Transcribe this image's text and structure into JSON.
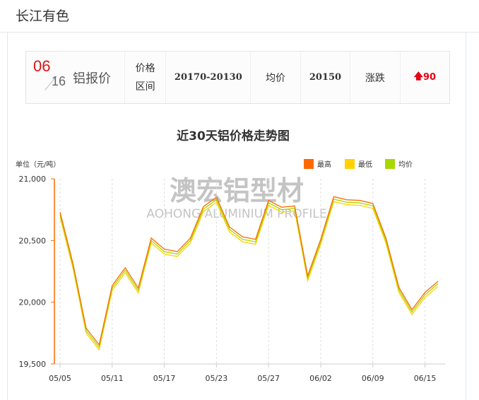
{
  "header": {
    "title": "长江有色"
  },
  "price_bar": {
    "month": "06",
    "day": "16",
    "title": "铝报价",
    "range_label_1": "价格",
    "range_label_2": "区间",
    "range_value": "20170-20130",
    "avg_label": "均价",
    "avg_value": "20150",
    "change_label": "涨跌",
    "change_icon": "arrow-up-icon",
    "change_value": "90",
    "change_color": "#e60012"
  },
  "watermark": {
    "cn": "澳宏铝型材",
    "en": "AOHONG ALUMINIUM PROFILE"
  },
  "chart_data": {
    "type": "line",
    "title": "近30天铝价格走势图",
    "ylabel": "单位（元/吨）",
    "ylim": [
      19500,
      21000
    ],
    "yticks": [
      "19,500",
      "20,000",
      "20,500",
      "21,000"
    ],
    "ytick_values": [
      19500,
      20000,
      20500,
      21000
    ],
    "xtick_labels": [
      "05/05",
      "05/11",
      "05/17",
      "05/23",
      "05/27",
      "06/02",
      "06/09",
      "06/15"
    ],
    "xtick_indices": [
      0,
      4,
      8,
      12,
      16,
      20,
      24,
      28
    ],
    "grid": "vertical dashed",
    "legend": "top-right",
    "series": [
      {
        "name": "最高",
        "color": "#ff6a00",
        "values": [
          20730,
          20310,
          19790,
          19655,
          20135,
          20280,
          20115,
          20520,
          20430,
          20410,
          20520,
          20775,
          20850,
          20610,
          20530,
          20510,
          20825,
          20770,
          20780,
          20215,
          20510,
          20855,
          20830,
          20825,
          20800,
          20520,
          20120,
          19940,
          20080,
          20170
        ]
      },
      {
        "name": "最低",
        "color": "#ffd200",
        "values": [
          20690,
          20270,
          19750,
          19615,
          20095,
          20240,
          20075,
          20480,
          20390,
          20370,
          20480,
          20735,
          20810,
          20570,
          20490,
          20470,
          20785,
          20730,
          20740,
          20175,
          20470,
          20815,
          20790,
          20785,
          20760,
          20480,
          20080,
          19900,
          20040,
          20130
        ]
      },
      {
        "name": "均价",
        "color": "#a8d800",
        "values": [
          20710,
          20290,
          19770,
          19635,
          20115,
          20260,
          20095,
          20500,
          20410,
          20390,
          20500,
          20755,
          20830,
          20590,
          20510,
          20490,
          20805,
          20750,
          20760,
          20195,
          20490,
          20835,
          20810,
          20805,
          20780,
          20500,
          20100,
          19920,
          20060,
          20150
        ]
      }
    ]
  }
}
